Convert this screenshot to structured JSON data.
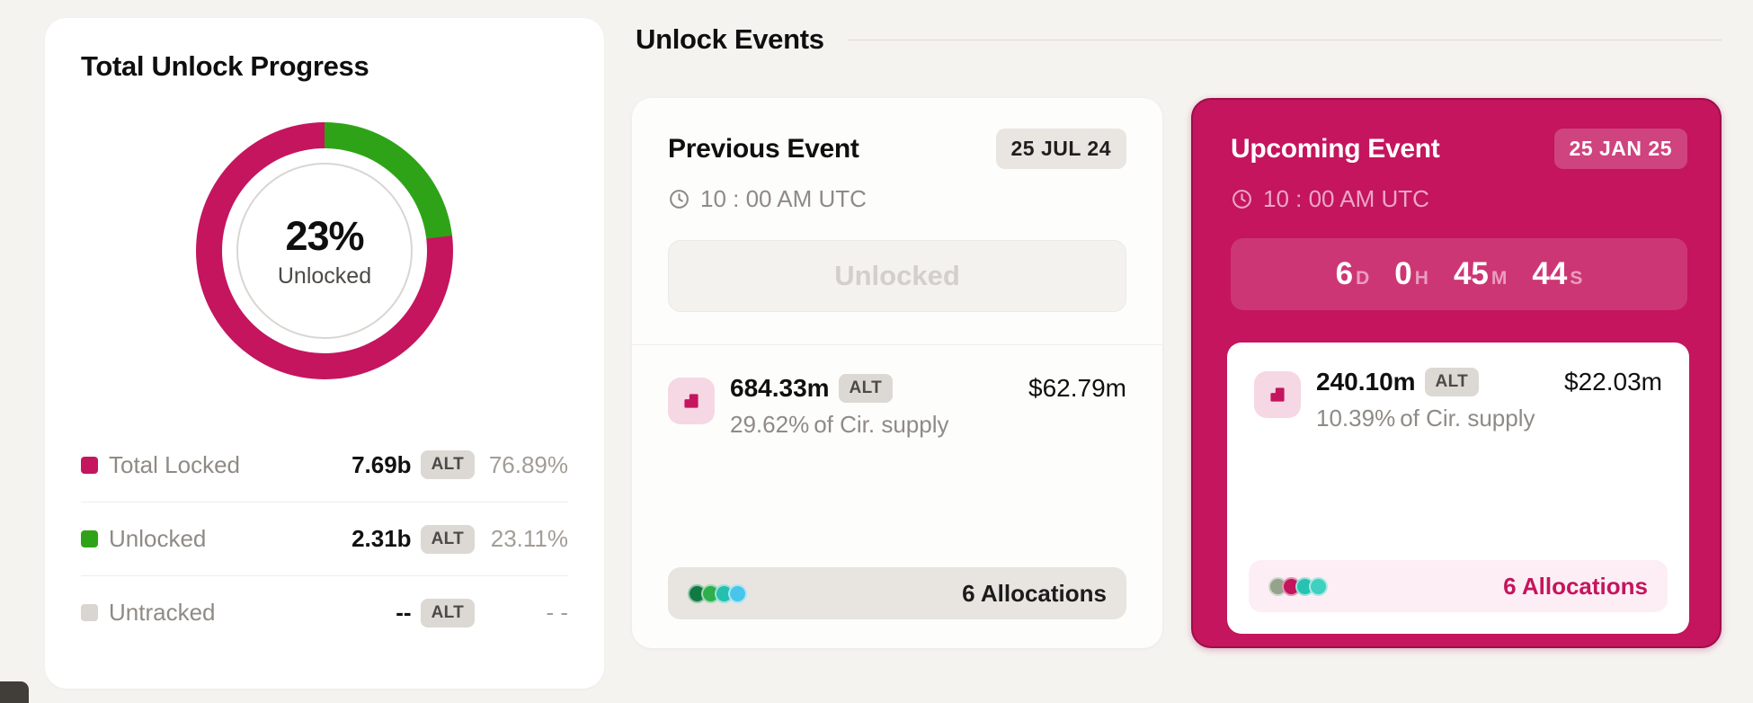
{
  "colors": {
    "background": "#f5f3f0",
    "brand_crimson": "#c4155e",
    "unlocked_green": "#2fa317",
    "untracked_gray": "#d9d5d1"
  },
  "progress_card": {
    "title": "Total Unlock Progress",
    "donut": {
      "percent": "23%",
      "sub_label": "Unlocked"
    },
    "legend": [
      {
        "label": "Total Locked",
        "value": "7.69b",
        "token": "ALT",
        "percent": "76.89%",
        "color": "#c4155e"
      },
      {
        "label": "Unlocked",
        "value": "2.31b",
        "token": "ALT",
        "percent": "23.11%",
        "color": "#2fa317"
      },
      {
        "label": "Untracked",
        "value": "--",
        "token": "ALT",
        "percent": "- -",
        "color": "#d9d5d1"
      }
    ]
  },
  "events": {
    "section_title": "Unlock Events",
    "previous": {
      "title": "Previous Event",
      "date_badge": "25 JUL 24",
      "time": "10 : 00 AM UTC",
      "status_label": "Unlocked",
      "amount": "684.33m",
      "token": "ALT",
      "usd": "$62.79m",
      "supply_percent": "29.62%",
      "supply_suffix": "of Cir. supply",
      "allocations": "6 Allocations",
      "dot_colors": [
        "#117a43",
        "#2fae4e",
        "#25bfae",
        "#48c5ea"
      ]
    },
    "upcoming": {
      "title": "Upcoming Event",
      "date_badge": "25 JAN 25",
      "time": "10 : 00 AM UTC",
      "countdown": [
        {
          "value": "6",
          "unit": "D"
        },
        {
          "value": "0",
          "unit": "H"
        },
        {
          "value": "45",
          "unit": "M"
        },
        {
          "value": "44",
          "unit": "S"
        }
      ],
      "amount": "240.10m",
      "token": "ALT",
      "usd": "$22.03m",
      "supply_percent": "10.39%",
      "supply_suffix": "of Cir. supply",
      "allocations": "6 Allocations",
      "dot_colors": [
        "#95a28c",
        "#c2155c",
        "#27c2b2",
        "#3fd0c0"
      ]
    }
  },
  "chart_data": {
    "type": "pie",
    "title": "Total Unlock Progress",
    "categories": [
      "Total Locked",
      "Unlocked",
      "Untracked"
    ],
    "values": [
      76.89,
      23.11,
      0
    ],
    "units": "%",
    "center_label": "23%",
    "center_sublabel": "Unlocked",
    "legend_position": "bottom",
    "series_detail": [
      {
        "name": "Total Locked",
        "amount": "7.69b",
        "token": "ALT",
        "percent": 76.89,
        "color": "#c4155e"
      },
      {
        "name": "Unlocked",
        "amount": "2.31b",
        "token": "ALT",
        "percent": 23.11,
        "color": "#2fa317"
      },
      {
        "name": "Untracked",
        "amount": "--",
        "token": "ALT",
        "percent": null,
        "color": "#d9d5d1"
      }
    ]
  }
}
